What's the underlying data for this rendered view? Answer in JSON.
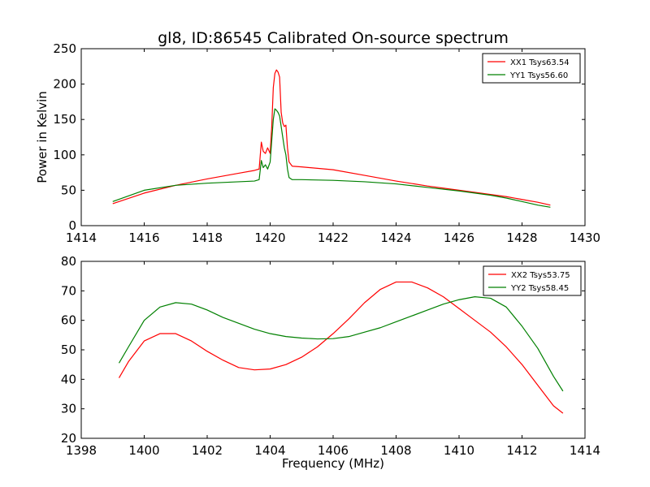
{
  "figure": {
    "title": "gl8, ID:86545 Calibrated On-source spectrum",
    "ylabel": "Power in Kelvin",
    "xlabel": "Frequency (MHz)"
  },
  "colors": {
    "xx": "#ff0000",
    "yy": "#008000"
  },
  "chart_data": [
    {
      "type": "line",
      "title": "gl8, ID:86545 Calibrated On-source spectrum",
      "ylabel": "Power in Kelvin",
      "xlabel": "",
      "xlim": [
        1414,
        1430
      ],
      "ylim": [
        0,
        250
      ],
      "xticks": [
        "1414",
        "1416",
        "1418",
        "1420",
        "1422",
        "1424",
        "1426",
        "1428",
        "1430"
      ],
      "yticks": [
        "0",
        "50",
        "100",
        "150",
        "200",
        "250"
      ],
      "grid": false,
      "legend_position": "top-right",
      "series": [
        {
          "name": "XX1 Tsys63.54",
          "color": "#ff0000",
          "x": [
            1415.0,
            1416.0,
            1417.0,
            1418.0,
            1418.5,
            1419.0,
            1419.5,
            1419.65,
            1419.72,
            1419.78,
            1419.85,
            1419.92,
            1420.0,
            1420.05,
            1420.1,
            1420.15,
            1420.2,
            1420.25,
            1420.3,
            1420.35,
            1420.4,
            1420.45,
            1420.5,
            1420.55,
            1420.6,
            1420.7,
            1421.0,
            1422.0,
            1423.0,
            1424.0,
            1425.0,
            1426.0,
            1427.0,
            1427.5,
            1428.0,
            1428.5,
            1428.9
          ],
          "values": [
            31,
            46,
            57,
            66,
            70,
            74,
            78,
            80,
            118,
            105,
            102,
            110,
            102,
            140,
            195,
            215,
            220,
            217,
            210,
            160,
            145,
            140,
            142,
            110,
            90,
            84,
            83,
            79,
            71,
            63,
            56,
            50,
            44,
            41,
            37,
            33,
            29
          ]
        },
        {
          "name": "YY1 Tsys56.60",
          "color": "#008000",
          "x": [
            1415.0,
            1416.0,
            1417.0,
            1418.0,
            1418.5,
            1419.0,
            1419.5,
            1419.65,
            1419.72,
            1419.78,
            1419.85,
            1419.92,
            1420.0,
            1420.05,
            1420.1,
            1420.15,
            1420.2,
            1420.25,
            1420.3,
            1420.35,
            1420.4,
            1420.45,
            1420.5,
            1420.55,
            1420.6,
            1420.7,
            1421.0,
            1422.0,
            1423.0,
            1424.0,
            1425.0,
            1426.0,
            1427.0,
            1427.5,
            1428.0,
            1428.5,
            1428.9
          ],
          "values": [
            34,
            50,
            57,
            60,
            61,
            62,
            63,
            65,
            92,
            82,
            86,
            80,
            90,
            120,
            150,
            165,
            163,
            160,
            155,
            140,
            125,
            110,
            100,
            80,
            68,
            65,
            65,
            64,
            62,
            59,
            54,
            49,
            43,
            39,
            34,
            29,
            26
          ]
        }
      ]
    },
    {
      "type": "line",
      "title": "",
      "ylabel": "",
      "xlabel": "Frequency (MHz)",
      "xlim": [
        1398,
        1414
      ],
      "ylim": [
        20,
        80
      ],
      "xticks": [
        "1398",
        "1400",
        "1402",
        "1404",
        "1406",
        "1408",
        "1410",
        "1412",
        "1414"
      ],
      "yticks": [
        "20",
        "30",
        "40",
        "50",
        "60",
        "70",
        "80"
      ],
      "grid": false,
      "legend_position": "top-right",
      "series": [
        {
          "name": "XX2 Tsys53.75",
          "color": "#ff0000",
          "x": [
            1399.2,
            1399.5,
            1400.0,
            1400.5,
            1401.0,
            1401.5,
            1402.0,
            1402.5,
            1403.0,
            1403.5,
            1404.0,
            1404.5,
            1405.0,
            1405.5,
            1406.0,
            1406.5,
            1407.0,
            1407.5,
            1408.0,
            1408.5,
            1409.0,
            1409.5,
            1410.0,
            1410.5,
            1411.0,
            1411.5,
            1412.0,
            1412.5,
            1413.0,
            1413.3
          ],
          "values": [
            40.5,
            46,
            53,
            55.5,
            55.5,
            53,
            49.5,
            46.5,
            44,
            43.2,
            43.5,
            45,
            47.5,
            51,
            55.5,
            60.5,
            66,
            70.5,
            73,
            73,
            71,
            68,
            64,
            60,
            56,
            51,
            45,
            38,
            31,
            28.5
          ]
        },
        {
          "name": "YY2 Tsys58.45",
          "color": "#008000",
          "x": [
            1399.2,
            1399.5,
            1400.0,
            1400.5,
            1401.0,
            1401.5,
            1402.0,
            1402.5,
            1403.0,
            1403.5,
            1404.0,
            1404.5,
            1405.0,
            1405.5,
            1406.0,
            1406.5,
            1407.0,
            1407.5,
            1408.0,
            1408.5,
            1409.0,
            1409.5,
            1410.0,
            1410.5,
            1411.0,
            1411.5,
            1412.0,
            1412.5,
            1413.0,
            1413.3
          ],
          "values": [
            45.5,
            51,
            60,
            64.5,
            66,
            65.5,
            63.5,
            61,
            59,
            57,
            55.5,
            54.5,
            54,
            53.7,
            53.8,
            54.5,
            56,
            57.5,
            59.5,
            61.5,
            63.5,
            65.5,
            67,
            68,
            67.5,
            64.5,
            58,
            50.5,
            41,
            36
          ]
        }
      ]
    }
  ]
}
